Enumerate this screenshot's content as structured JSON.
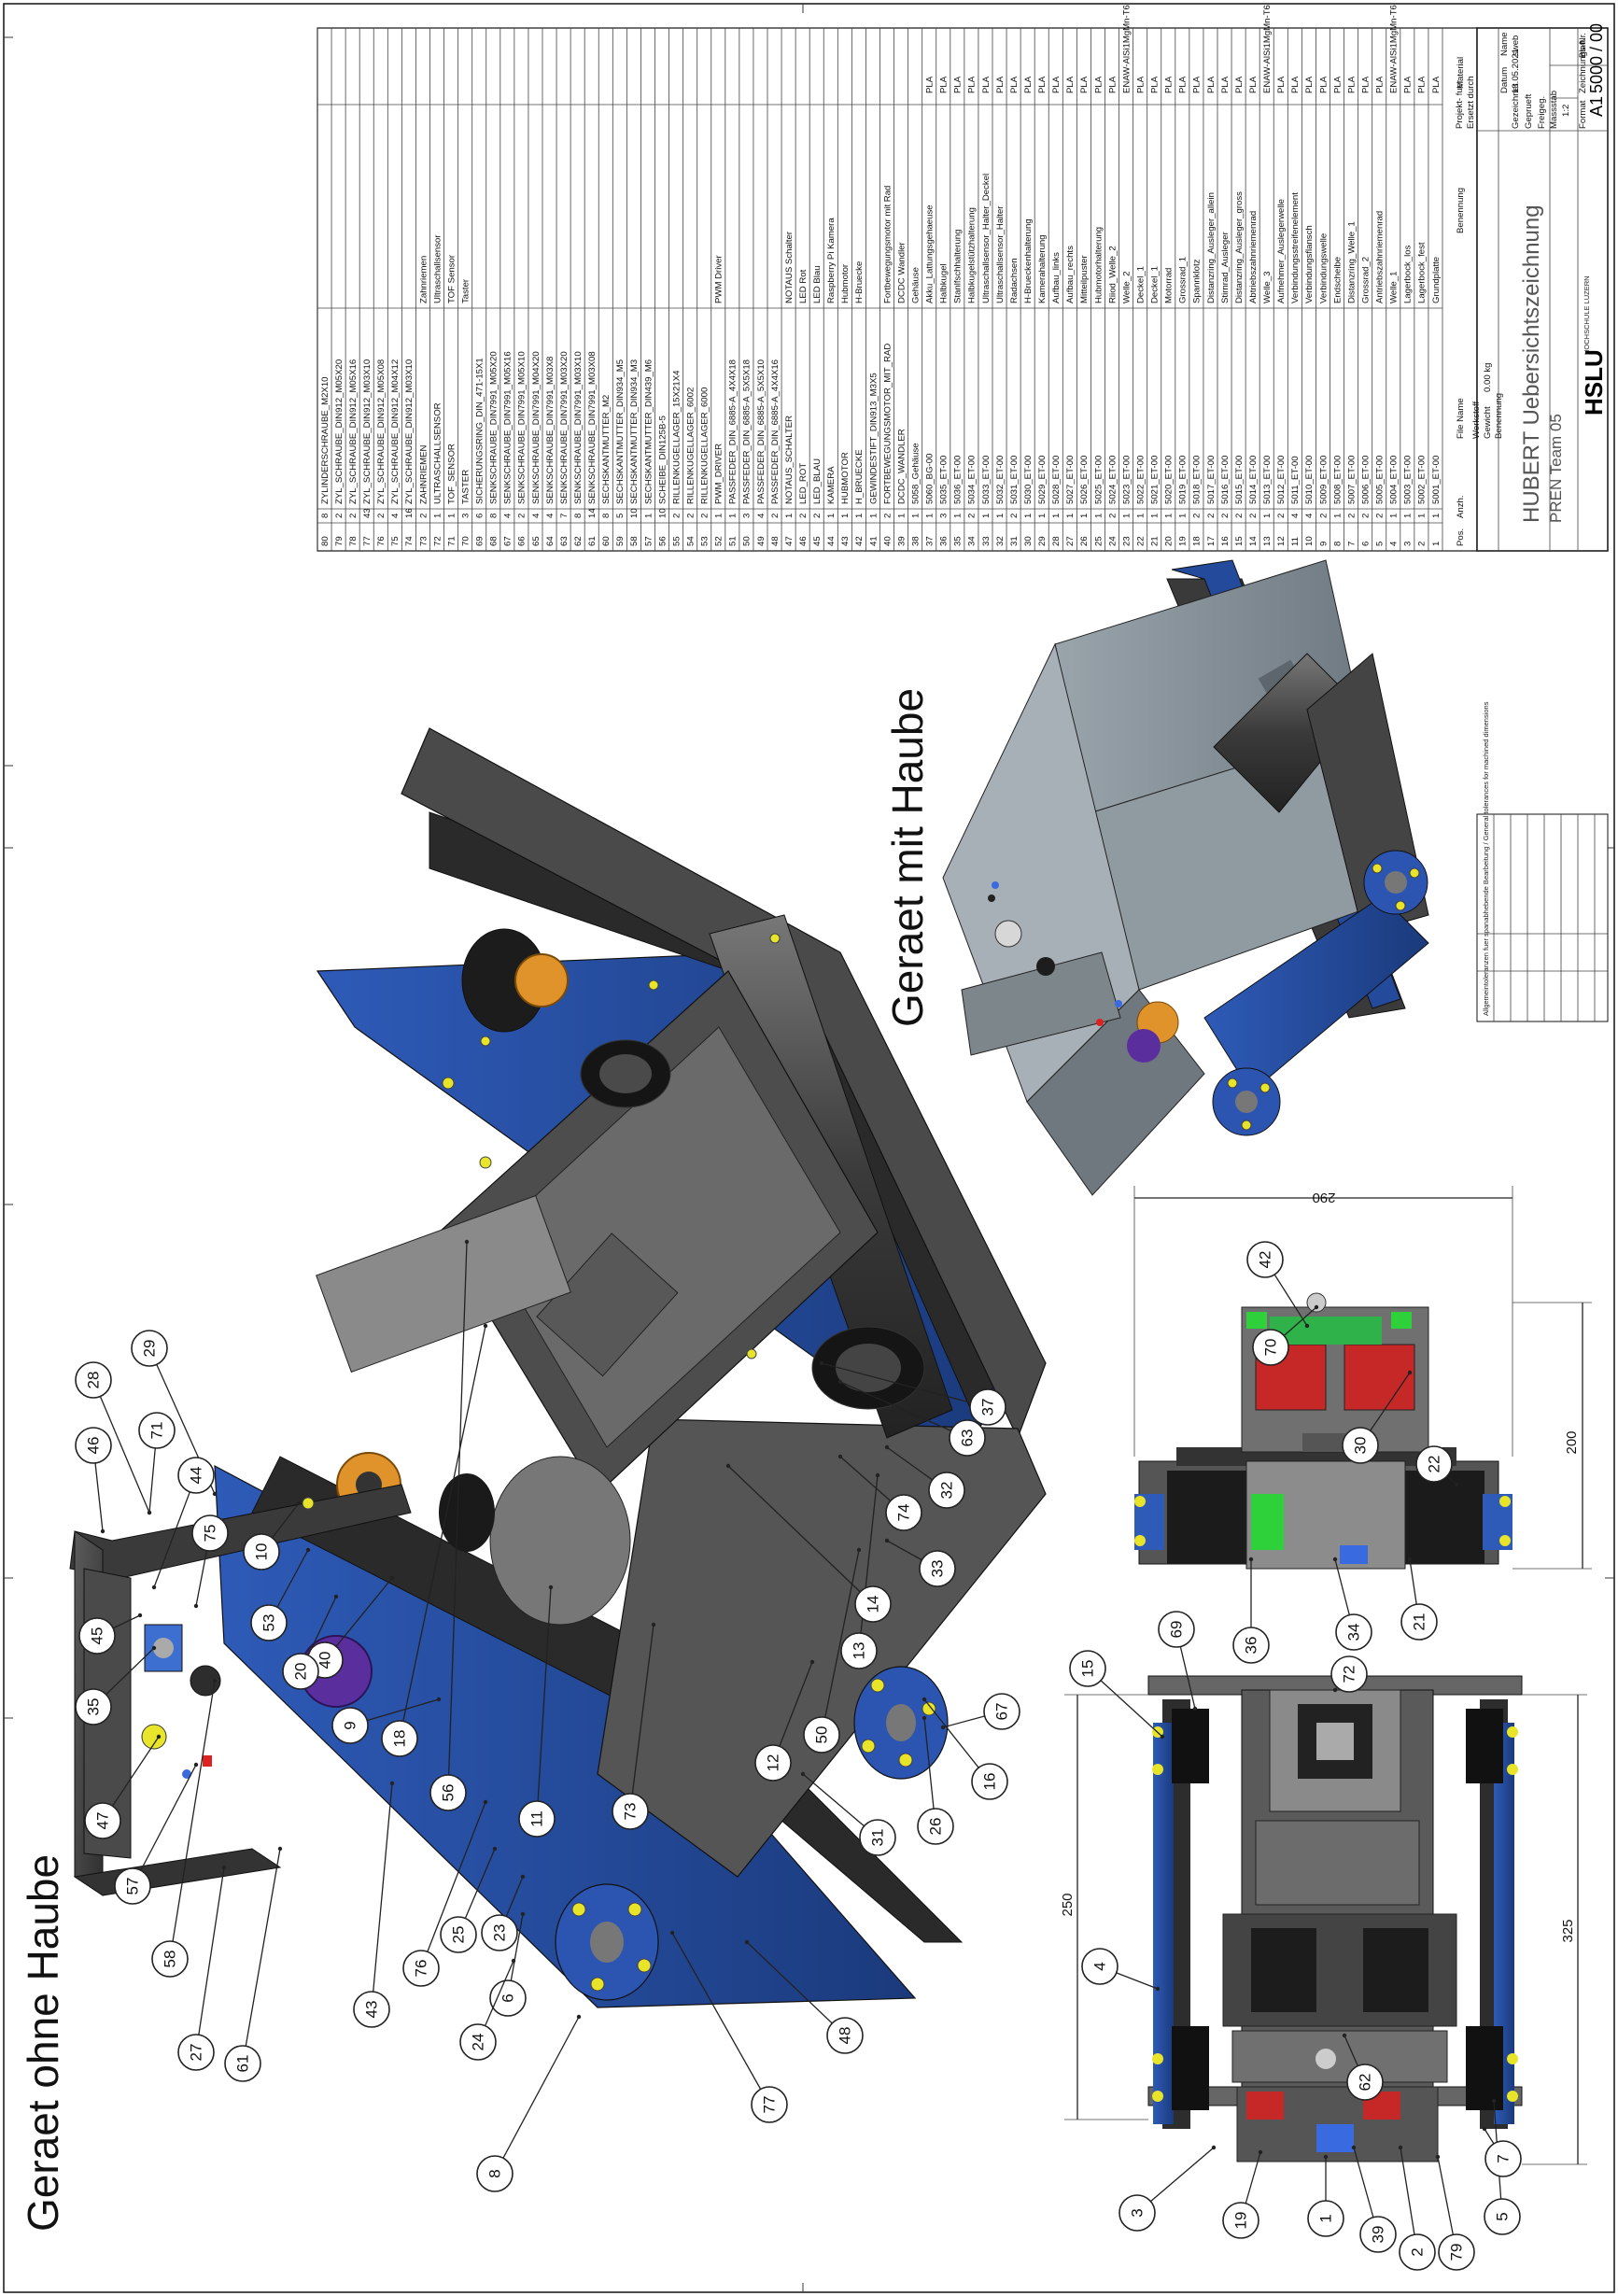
{
  "titles": {
    "without_hood": "Geraet ohne Haube",
    "with_hood": "Geraet mit Haube"
  },
  "iso_balloons": [
    "46",
    "28",
    "29",
    "71",
    "44",
    "75",
    "10",
    "53",
    "40",
    "9",
    "18",
    "56",
    "11",
    "73",
    "12",
    "50",
    "13",
    "14",
    "33",
    "74",
    "32",
    "63",
    "37",
    "45",
    "35",
    "47",
    "57",
    "58",
    "27",
    "61",
    "20",
    "43",
    "76",
    "25",
    "23",
    "6",
    "24",
    "8",
    "77",
    "48",
    "31",
    "26",
    "16",
    "67"
  ],
  "front_balloons": [
    "42",
    "70",
    "30",
    "22",
    "21",
    "34",
    "36"
  ],
  "top_balloons": [
    "69",
    "15",
    "72",
    "4",
    "62",
    "5",
    "7",
    "79",
    "2",
    "39",
    "1",
    "19",
    "3"
  ],
  "dimensions": {
    "d290": "290",
    "d200": "200",
    "d250": "250",
    "d325": "325"
  },
  "bom": {
    "header": {
      "pos": "Pos.",
      "qty": "Anzh.",
      "file": "File Name",
      "desc": "Benennung",
      "material": "Material"
    },
    "rows": [
      {
        "pos": "80",
        "qty": "8",
        "file": "ZYLINDERSCHRAUBE_M2X10",
        "desc": "",
        "mat": ""
      },
      {
        "pos": "79",
        "qty": "2",
        "file": "ZYL_SCHRAUBE_DIN912_M05X20",
        "desc": "",
        "mat": ""
      },
      {
        "pos": "78",
        "qty": "2",
        "file": "ZYL_SCHRAUBE_DIN912_M05X16",
        "desc": "",
        "mat": ""
      },
      {
        "pos": "77",
        "qty": "43",
        "file": "ZYL_SCHRAUBE_DIN912_M03X10",
        "desc": "",
        "mat": ""
      },
      {
        "pos": "76",
        "qty": "2",
        "file": "ZYL_SCHRAUBE_DIN912_M05X08",
        "desc": "",
        "mat": ""
      },
      {
        "pos": "75",
        "qty": "4",
        "file": "ZYL_SCHRAUBE_DIN912_M04X12",
        "desc": "",
        "mat": ""
      },
      {
        "pos": "74",
        "qty": "16",
        "file": "ZYL_SCHRAUBE_DIN912_M03X10",
        "desc": "",
        "mat": ""
      },
      {
        "pos": "73",
        "qty": "2",
        "file": "ZAHNRIEMEN",
        "desc": "Zahnriemen",
        "mat": ""
      },
      {
        "pos": "72",
        "qty": "1",
        "file": "ULTRASCHALLSENSOR",
        "desc": "Ultraschallsensor",
        "mat": ""
      },
      {
        "pos": "71",
        "qty": "1",
        "file": "TOF_SENSOR",
        "desc": "TOF Sensor",
        "mat": ""
      },
      {
        "pos": "70",
        "qty": "3",
        "file": "TASTER",
        "desc": "Taster",
        "mat": ""
      },
      {
        "pos": "69",
        "qty": "6",
        "file": "SICHERUNGSRING_DIN_471-15X1",
        "desc": "",
        "mat": ""
      },
      {
        "pos": "68",
        "qty": "8",
        "file": "SENKSCHRAUBE_DIN7991_M05X20",
        "desc": "",
        "mat": ""
      },
      {
        "pos": "67",
        "qty": "4",
        "file": "SENKSCHRAUBE_DIN7991_M05X16",
        "desc": "",
        "mat": ""
      },
      {
        "pos": "66",
        "qty": "2",
        "file": "SENKSCHRAUBE_DIN7991_M05X10",
        "desc": "",
        "mat": ""
      },
      {
        "pos": "65",
        "qty": "4",
        "file": "SENKSCHRAUBE_DIN7991_M04X20",
        "desc": "",
        "mat": ""
      },
      {
        "pos": "64",
        "qty": "4",
        "file": "SENKSCHRAUBE_DIN7991_M03X8",
        "desc": "",
        "mat": ""
      },
      {
        "pos": "63",
        "qty": "7",
        "file": "SENKSCHRAUBE_DIN7991_M03X20",
        "desc": "",
        "mat": ""
      },
      {
        "pos": "62",
        "qty": "8",
        "file": "SENKSCHRAUBE_DIN7991_M03X10",
        "desc": "",
        "mat": ""
      },
      {
        "pos": "61",
        "qty": "14",
        "file": "SENKSCHRAUBE_DIN7991_M03X08",
        "desc": "",
        "mat": ""
      },
      {
        "pos": "60",
        "qty": "8",
        "file": "SECHSKANTMUTTER_M2",
        "desc": "",
        "mat": ""
      },
      {
        "pos": "59",
        "qty": "5",
        "file": "SECHSKANTMUTTER_DIN934_M5",
        "desc": "",
        "mat": ""
      },
      {
        "pos": "58",
        "qty": "10",
        "file": "SECHSKANTMUTTER_DIN934_M3",
        "desc": "",
        "mat": ""
      },
      {
        "pos": "57",
        "qty": "1",
        "file": "SECHSKANTMUTTER_DIN439_M6",
        "desc": "",
        "mat": ""
      },
      {
        "pos": "56",
        "qty": "10",
        "file": "SCHEIBE_DIN125B-5",
        "desc": "",
        "mat": ""
      },
      {
        "pos": "55",
        "qty": "2",
        "file": "RILLENKUGELLAGER_15X21X4",
        "desc": "",
        "mat": ""
      },
      {
        "pos": "54",
        "qty": "2",
        "file": "RILLENKUGELLAGER_6002",
        "desc": "",
        "mat": ""
      },
      {
        "pos": "53",
        "qty": "2",
        "file": "RILLENKUGELLAGER_6000",
        "desc": "",
        "mat": ""
      },
      {
        "pos": "52",
        "qty": "1",
        "file": "PWM_DRIVER",
        "desc": "PWM Driver",
        "mat": ""
      },
      {
        "pos": "51",
        "qty": "1",
        "file": "PASSFEDER_DIN_6885-A_4X4X18",
        "desc": "",
        "mat": ""
      },
      {
        "pos": "50",
        "qty": "3",
        "file": "PASSFEDER_DIN_6885-A_5X5X18",
        "desc": "",
        "mat": ""
      },
      {
        "pos": "49",
        "qty": "4",
        "file": "PASSFEDER_DIN_6885-A_5X5X10",
        "desc": "",
        "mat": ""
      },
      {
        "pos": "48",
        "qty": "2",
        "file": "PASSFEDER_DIN_6885-A_4X4X16",
        "desc": "",
        "mat": ""
      },
      {
        "pos": "47",
        "qty": "1",
        "file": "NOTAUS_SCHALTER",
        "desc": "NOTAUS Schalter",
        "mat": ""
      },
      {
        "pos": "46",
        "qty": "2",
        "file": "LED_ROT",
        "desc": "LED Rot",
        "mat": ""
      },
      {
        "pos": "45",
        "qty": "2",
        "file": "LED_BLAU",
        "desc": "LED Blau",
        "mat": ""
      },
      {
        "pos": "44",
        "qty": "1",
        "file": "KAMERA",
        "desc": "Raspberry Pi Kamera",
        "mat": ""
      },
      {
        "pos": "43",
        "qty": "1",
        "file": "HUBMOTOR",
        "desc": "Hubmotor",
        "mat": ""
      },
      {
        "pos": "42",
        "qty": "1",
        "file": "H_BRUECKE",
        "desc": "H-Bruecke",
        "mat": ""
      },
      {
        "pos": "41",
        "qty": "1",
        "file": "GEWINDESTIFT_DIN913_M3X5",
        "desc": "",
        "mat": ""
      },
      {
        "pos": "40",
        "qty": "2",
        "file": "FORTBEWEGUNGSMOTOR_MIT_RAD",
        "desc": "Fortbewegungsmotor mit Rad",
        "mat": ""
      },
      {
        "pos": "39",
        "qty": "1",
        "file": "DCDC_WANDLER",
        "desc": "DCDC Wandler",
        "mat": ""
      },
      {
        "pos": "38",
        "qty": "1",
        "file": "5058_Gehäuse",
        "desc": "Gehäuse",
        "mat": ""
      },
      {
        "pos": "37",
        "qty": "1",
        "file": "5060_BG-00",
        "desc": "Akku_Lattungsgehaeuse",
        "mat": "PLA"
      },
      {
        "pos": "36",
        "qty": "3",
        "file": "5035_ET-00",
        "desc": "Halbkugel",
        "mat": "PLA"
      },
      {
        "pos": "35",
        "qty": "1",
        "file": "5036_ET-00",
        "desc": "Stanlfschhalterung",
        "mat": "PLA"
      },
      {
        "pos": "34",
        "qty": "2",
        "file": "5034_ET-00",
        "desc": "Halbkugelstützhalterung",
        "mat": "PLA"
      },
      {
        "pos": "33",
        "qty": "1",
        "file": "5033_ET-00",
        "desc": "Ultraschallsensor_Halter_Deckel",
        "mat": "PLA"
      },
      {
        "pos": "32",
        "qty": "1",
        "file": "5032_ET-00",
        "desc": "Ultraschallsensor_Halter",
        "mat": "PLA"
      },
      {
        "pos": "31",
        "qty": "2",
        "file": "5031_ET-00",
        "desc": "Radachsen",
        "mat": "PLA"
      },
      {
        "pos": "30",
        "qty": "1",
        "file": "5030_ET-00",
        "desc": "H-Brueckenhalterung",
        "mat": "PLA"
      },
      {
        "pos": "29",
        "qty": "1",
        "file": "5029_ET-00",
        "desc": "Kamerahalterung",
        "mat": "PLA"
      },
      {
        "pos": "28",
        "qty": "1",
        "file": "5028_ET-00",
        "desc": "Aufbau_links",
        "mat": "PLA"
      },
      {
        "pos": "27",
        "qty": "1",
        "file": "5027_ET-00",
        "desc": "Aufbau_rechts",
        "mat": "PLA"
      },
      {
        "pos": "26",
        "qty": "1",
        "file": "5026_ET-00",
        "desc": "Mitteilpuster",
        "mat": "PLA"
      },
      {
        "pos": "25",
        "qty": "1",
        "file": "5025_ET-00",
        "desc": "Hubmotorhalterung",
        "mat": "PLA"
      },
      {
        "pos": "24",
        "qty": "2",
        "file": "5024_ET-00",
        "desc": "Riiod_Welle_2",
        "mat": "PLA"
      },
      {
        "pos": "23",
        "qty": "1",
        "file": "5023_ET-00",
        "desc": "Welle_2",
        "mat": "ENAW-AlSi1MgMn-T6"
      },
      {
        "pos": "22",
        "qty": "1",
        "file": "5022_ET-00",
        "desc": "Deckel_1",
        "mat": "PLA"
      },
      {
        "pos": "21",
        "qty": "1",
        "file": "5021_ET-00",
        "desc": "Deckel_1",
        "mat": "PLA"
      },
      {
        "pos": "20",
        "qty": "1",
        "file": "5020_ET-00",
        "desc": "Motorrad",
        "mat": "PLA"
      },
      {
        "pos": "19",
        "qty": "1",
        "file": "5019_ET-00",
        "desc": "Grossrad_1",
        "mat": "PLA"
      },
      {
        "pos": "18",
        "qty": "2",
        "file": "5018_ET-00",
        "desc": "Spannklotz",
        "mat": "PLA"
      },
      {
        "pos": "17",
        "qty": "2",
        "file": "5017_ET-00",
        "desc": "Distanzring_Ausleger_allein",
        "mat": "PLA"
      },
      {
        "pos": "16",
        "qty": "2",
        "file": "5016_ET-00",
        "desc": "Stirnrad_Ausleger",
        "mat": "PLA"
      },
      {
        "pos": "15",
        "qty": "2",
        "file": "5015_ET-00",
        "desc": "Distanzring_Ausleger_gross",
        "mat": "PLA"
      },
      {
        "pos": "14",
        "qty": "2",
        "file": "5014_ET-00",
        "desc": "Abtriebszahnriemenrad",
        "mat": "PLA"
      },
      {
        "pos": "13",
        "qty": "1",
        "file": "5013_ET-00",
        "desc": "Welle_3",
        "mat": "ENAW-AlSi1MgMn-T6"
      },
      {
        "pos": "12",
        "qty": "2",
        "file": "5012_ET-00",
        "desc": "Aufnehmer_Auslegerwelle",
        "mat": "PLA"
      },
      {
        "pos": "11",
        "qty": "4",
        "file": "5011_ET-00",
        "desc": "Verbindungsstreifenelement",
        "mat": "PLA"
      },
      {
        "pos": "10",
        "qty": "4",
        "file": "5010_ET-00",
        "desc": "Verbindungsflansch",
        "mat": "PLA"
      },
      {
        "pos": "9",
        "qty": "2",
        "file": "5009_ET-00",
        "desc": "Verbindungswelle",
        "mat": "PLA"
      },
      {
        "pos": "8",
        "qty": "1",
        "file": "5008_ET-00",
        "desc": "Endscheibe",
        "mat": "PLA"
      },
      {
        "pos": "7",
        "qty": "2",
        "file": "5007_ET-00",
        "desc": "Distanzring_Welle_1",
        "mat": "PLA"
      },
      {
        "pos": "6",
        "qty": "2",
        "file": "5006_ET-00",
        "desc": "Grossrad_2",
        "mat": "PLA"
      },
      {
        "pos": "5",
        "qty": "2",
        "file": "5005_ET-00",
        "desc": "Antriebszahnriemenrad",
        "mat": "PLA"
      },
      {
        "pos": "4",
        "qty": "1",
        "file": "5004_ET-00",
        "desc": "Welle_1",
        "mat": "ENAW-AlSi1MgMn-T6"
      },
      {
        "pos": "3",
        "qty": "1",
        "file": "5003_ET-00",
        "desc": "Lagerbock_los",
        "mat": "PLA"
      },
      {
        "pos": "2",
        "qty": "1",
        "file": "5002_ET-00",
        "desc": "Lagerbock_fest",
        "mat": "PLA"
      },
      {
        "pos": "1",
        "qty": "1",
        "file": "5001_ET-00",
        "desc": "Grundplatte",
        "mat": "PLA"
      }
    ]
  },
  "title_block": {
    "name": "HUBERT Uebersichtszeichnung",
    "team": "PREN Team 05",
    "school": "HSLU",
    "school_full": "HOCHSCHULE LUZERN",
    "drawing_no": "5000 / 00",
    "format": "A1",
    "scale": "1:2",
    "weight": "0.00 kg",
    "date": "13.05.2021",
    "author": "sweb",
    "labels": [
      "Massstab",
      "Datum",
      "Name",
      "Gezeichnet",
      "Geprueft",
      "Freigeg.",
      "Format",
      "Zeichnungs-Nr.",
      "Blatt",
      "Projekt- fuer",
      "Ersetzt durch",
      "Werkstoff",
      "Gewicht",
      "Benennung"
    ]
  },
  "tolerance_note": "Allgemeintoleranzen fuer spanabhebende Bearbeitung / General tolerances for machined dimensions"
}
